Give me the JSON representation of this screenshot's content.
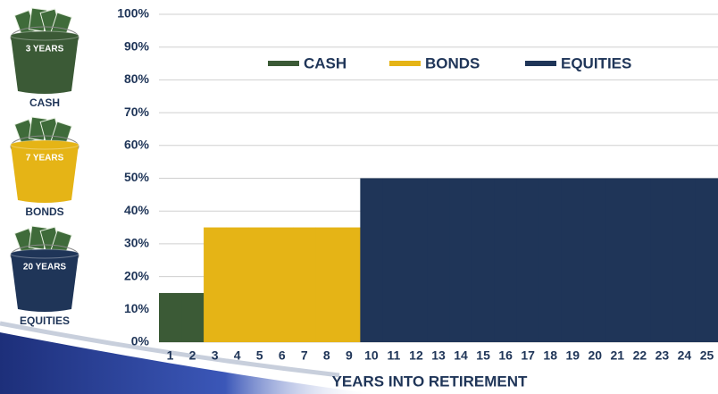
{
  "chart_data": {
    "type": "bar",
    "x_label": "YEARS INTO RETIREMENT",
    "categories": [
      "1",
      "2",
      "3",
      "4",
      "5",
      "6",
      "7",
      "8",
      "9",
      "10",
      "11",
      "12",
      "13",
      "14",
      "15",
      "16",
      "17",
      "18",
      "19",
      "20",
      "21",
      "22",
      "23",
      "24",
      "25"
    ],
    "series": [
      {
        "name": "CASH",
        "color": "#3b5a36",
        "values": [
          15,
          15,
          null,
          null,
          null,
          null,
          null,
          null,
          null,
          null,
          null,
          null,
          null,
          null,
          null,
          null,
          null,
          null,
          null,
          null,
          null,
          null,
          null,
          null,
          null
        ]
      },
      {
        "name": "BONDS",
        "color": "#e5b416",
        "values": [
          null,
          null,
          35,
          35,
          35,
          35,
          35,
          35,
          35,
          null,
          null,
          null,
          null,
          null,
          null,
          null,
          null,
          null,
          null,
          null,
          null,
          null,
          null,
          null,
          null
        ]
      },
      {
        "name": "EQUITIES",
        "color": "#1f3558",
        "values": [
          null,
          null,
          null,
          null,
          null,
          null,
          null,
          null,
          null,
          50,
          50,
          50,
          50,
          50,
          50,
          50,
          50,
          50,
          50,
          50,
          50,
          50,
          50,
          50,
          50
        ]
      }
    ],
    "ylim": [
      0,
      100
    ],
    "yticks": [
      {
        "value": 0,
        "label": "0%"
      },
      {
        "value": 10,
        "label": "10%"
      },
      {
        "value": 20,
        "label": "20%"
      },
      {
        "value": 30,
        "label": "30%"
      },
      {
        "value": 40,
        "label": "40%"
      },
      {
        "value": 50,
        "label": "50%"
      },
      {
        "value": 60,
        "label": "60%"
      },
      {
        "value": 70,
        "label": "70%"
      },
      {
        "value": 80,
        "label": "80%"
      },
      {
        "value": 90,
        "label": "90%"
      },
      {
        "value": 100,
        "label": "100%"
      }
    ],
    "grid": true,
    "legend": "top",
    "buckets": [
      {
        "amount": "3 YEARS",
        "label": "CASH",
        "color": "#3b5a36"
      },
      {
        "amount": "7 YEARS",
        "label": "BONDS",
        "color": "#e5b416"
      },
      {
        "amount": "20 YEARS",
        "label": "EQUITIES",
        "color": "#1f3558"
      }
    ]
  }
}
